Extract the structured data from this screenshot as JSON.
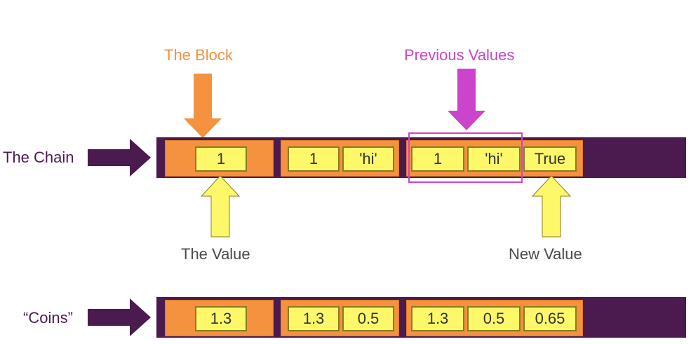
{
  "colors": {
    "chain_bar": "#4b1a4f",
    "block_fill": "#f4923f",
    "value_cell_fill": "#fdf86a",
    "block_label": "#f4923f",
    "previous_values_label": "#cc44cc",
    "text_dark": "#4b1a4f",
    "text_gray": "#333333"
  },
  "labels": {
    "the_block": "The Block",
    "previous_values": "Previous Values",
    "the_chain": "The Chain",
    "the_value": "The Value",
    "new_value": "New Value",
    "coins": "“Coins”"
  },
  "top_chain": {
    "blocks": [
      {
        "cells": [
          "1"
        ]
      },
      {
        "cells": [
          "1",
          "'hi'"
        ]
      },
      {
        "cells": [
          "1",
          "'hi'",
          "True"
        ]
      }
    ]
  },
  "coins_chain": {
    "blocks": [
      {
        "cells": [
          "1.3"
        ]
      },
      {
        "cells": [
          "1.3",
          "0.5"
        ]
      },
      {
        "cells": [
          "1.3",
          "0.5",
          "0.65"
        ]
      }
    ]
  },
  "icons": {
    "chain_arrow": "right-arrow-icon",
    "block_arrow": "down-arrow-icon",
    "previous_arrow": "down-arrow-icon",
    "value_arrow": "up-arrow-icon",
    "new_value_arrow": "up-arrow-icon",
    "coins_arrow": "right-arrow-icon"
  }
}
